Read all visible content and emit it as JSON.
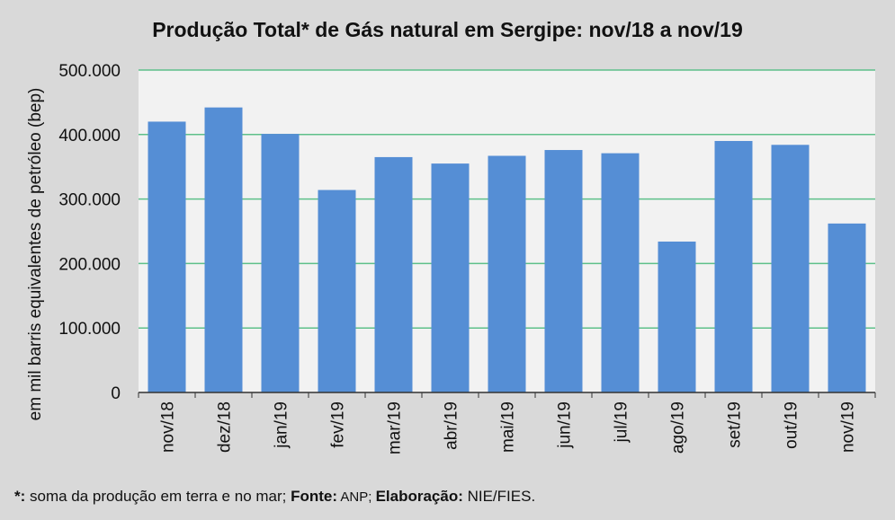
{
  "chart_data": {
    "type": "bar",
    "title": "Produção Total* de Gás natural em Sergipe: nov/18 a nov/19",
    "xlabel": "",
    "ylabel": "em mil barris equivalentes de petróleo (bep)",
    "categories": [
      "nov/18",
      "dez/18",
      "jan/19",
      "fev/19",
      "mar/19",
      "abr/19",
      "mai/19",
      "jun/19",
      "jul/19",
      "ago/19",
      "set/19",
      "out/19",
      "nov/19"
    ],
    "values": [
      420000,
      442000,
      401000,
      314000,
      365000,
      355000,
      367000,
      376000,
      371000,
      234000,
      390000,
      384000,
      262000
    ],
    "ylim": [
      0,
      500000
    ],
    "yticks": [
      0,
      100000,
      200000,
      300000,
      400000,
      500000
    ],
    "ytick_labels": [
      "0",
      "100.000",
      "200.000",
      "300.000",
      "400.000",
      "500.000"
    ],
    "grid": true,
    "legend": "none",
    "colors": {
      "bar": "#558ed5",
      "grid": "#5ec08a",
      "plot_bg": "#f2f2f2"
    }
  },
  "footnote": {
    "marker": "*:",
    "text1": " soma da produção em terra e no mar; ",
    "fonte_label": "Fonte:",
    "fonte": "  ANP; ",
    "elab_label": "Elaboração:",
    "elab": " NIE/FIES."
  }
}
